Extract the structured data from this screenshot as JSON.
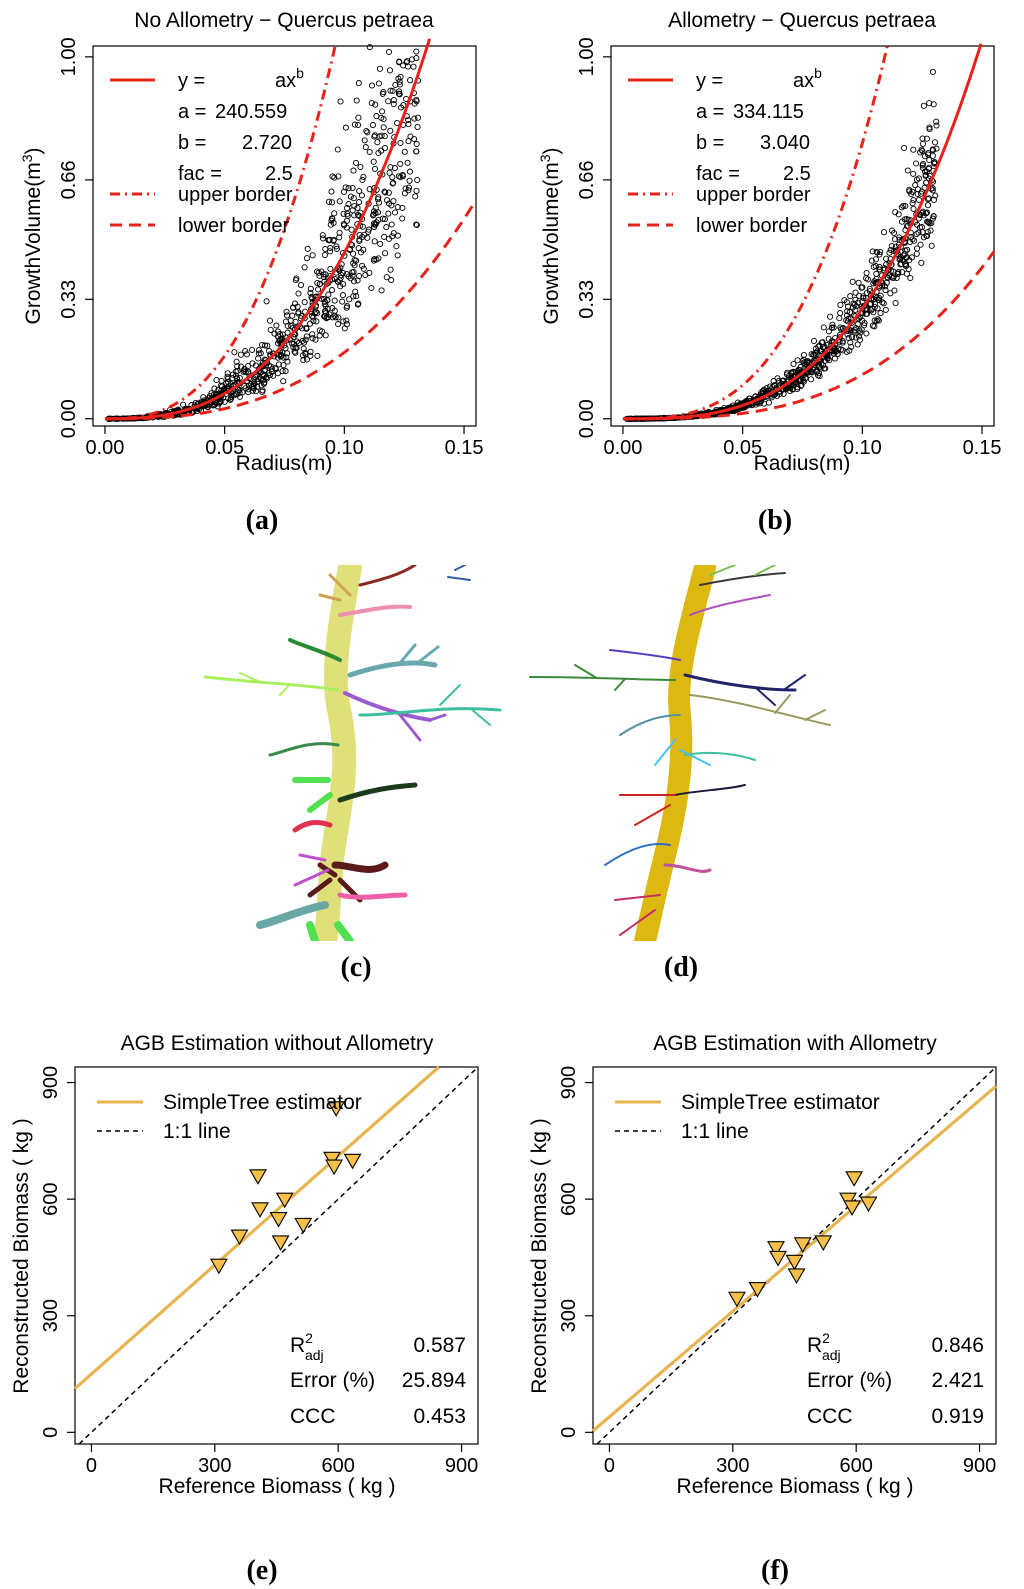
{
  "panels": {
    "a": {
      "caption": "(a)"
    },
    "b": {
      "caption": "(b)"
    },
    "c": {
      "caption": "(c)"
    },
    "d": {
      "caption": "(d)"
    },
    "e": {
      "caption": "(e)"
    },
    "f": {
      "caption": "(f)"
    }
  },
  "colors": {
    "fit_red": "#e8211a",
    "fit_orange": "#e8b450",
    "marker_fill": "#f4c04a",
    "trunk_c": "#dfe07a",
    "trunk_d": "#ddb810"
  },
  "chart_data": [
    {
      "id": "a",
      "type": "scatter",
      "title": "No Allometry − Quercus petraea",
      "xlabel": "Radius(m)",
      "ylabel": "GrowthVolume(m",
      "ylabel_sup": "3",
      "ylabel_close": ")",
      "xlim": [
        -0.005,
        0.155
      ],
      "ylim": [
        -0.02,
        1.03
      ],
      "xticks": [
        "0.00",
        "0.05",
        "0.10",
        "0.15"
      ],
      "xtick_values": [
        0,
        0.05,
        0.1,
        0.15
      ],
      "yticks": [
        "0.00",
        "0.33",
        "0.66",
        "1.00"
      ],
      "ytick_values": [
        0,
        0.33,
        0.66,
        1.0
      ],
      "model": {
        "a": 240.559,
        "b": 2.72,
        "fac": 2.5
      },
      "legend": {
        "fit_label": "y =",
        "fit_formula": "ax",
        "fit_sup": "b",
        "a_label": "a =",
        "a_value": "240.559",
        "b_label": "b =",
        "b_value": "2.720",
        "fac_label": "fac =",
        "fac_value": "2.5",
        "upper_label": "upper border",
        "lower_label": "lower border"
      },
      "points_note": "approx. 1000 points scattered around the fitted power curve"
    },
    {
      "id": "b",
      "type": "scatter",
      "title": "Allometry − Quercus petraea",
      "xlabel": "Radius(m)",
      "ylabel": "GrowthVolume(m",
      "ylabel_sup": "3",
      "ylabel_close": ")",
      "xlim": [
        -0.005,
        0.155
      ],
      "ylim": [
        -0.02,
        1.03
      ],
      "xticks": [
        "0.00",
        "0.05",
        "0.10",
        "0.15"
      ],
      "xtick_values": [
        0,
        0.05,
        0.1,
        0.15
      ],
      "yticks": [
        "0.00",
        "0.33",
        "0.66",
        "1.00"
      ],
      "ytick_values": [
        0,
        0.33,
        0.66,
        1.0
      ],
      "model": {
        "a": 334.115,
        "b": 3.04,
        "fac": 2.5
      },
      "legend": {
        "fit_label": "y =",
        "fit_formula": "ax",
        "fit_sup": "b",
        "a_label": "a =",
        "a_value": "334.115",
        "b_label": "b =",
        "b_value": "3.040",
        "fac_label": "fac =",
        "fac_value": "2.5",
        "upper_label": "upper border",
        "lower_label": "lower border"
      },
      "points_note": "approx. 1000 points tightly scattered around the fitted power curve"
    },
    {
      "id": "e",
      "type": "scatter",
      "title": "AGB Estimation without Allometry",
      "xlabel": "Reference Biomass ( kg )",
      "ylabel": "Reconstructed Biomass ( kg )",
      "xlim": [
        -40,
        940
      ],
      "ylim": [
        -30,
        940
      ],
      "xticks": [
        "0",
        "300",
        "600",
        "900"
      ],
      "xtick_values": [
        0,
        300,
        600,
        900
      ],
      "yticks": [
        "0",
        "300",
        "600",
        "900"
      ],
      "ytick_values": [
        0,
        300,
        600,
        900
      ],
      "fit": {
        "intercept": 150,
        "slope": 0.935
      },
      "legend": {
        "fit_label": "SimpleTree estimator",
        "ref_label": "1:1 line"
      },
      "stats": {
        "r2_label": "R",
        "r2_sup": "2",
        "r2_sub": "adj",
        "r2_value": "0.587",
        "error_label": "Error (%)",
        "error_value": "25.894",
        "ccc_label": "CCC",
        "ccc_value": "0.453"
      },
      "points": [
        [
          310,
          430
        ],
        [
          360,
          505
        ],
        [
          405,
          660
        ],
        [
          410,
          575
        ],
        [
          455,
          550
        ],
        [
          460,
          490
        ],
        [
          470,
          600
        ],
        [
          515,
          535
        ],
        [
          585,
          705
        ],
        [
          590,
          685
        ],
        [
          635,
          700
        ],
        [
          595,
          835
        ]
      ]
    },
    {
      "id": "f",
      "type": "scatter",
      "title": "AGB Estimation with Allometry",
      "xlabel": "Reference Biomass ( kg )",
      "ylabel": "Reconstructed Biomass ( kg )",
      "xlim": [
        -40,
        940
      ],
      "ylim": [
        -30,
        940
      ],
      "xticks": [
        "0",
        "300",
        "600",
        "900"
      ],
      "xtick_values": [
        0,
        300,
        600,
        900
      ],
      "yticks": [
        "0",
        "300",
        "600",
        "900"
      ],
      "ytick_values": [
        0,
        300,
        600,
        900
      ],
      "fit": {
        "intercept": 40,
        "slope": 0.905
      },
      "legend": {
        "fit_label": "SimpleTree estimator",
        "ref_label": "1:1 line"
      },
      "stats": {
        "r2_label": "R",
        "r2_sup": "2",
        "r2_sub": "adj",
        "r2_value": "0.846",
        "error_label": "Error (%)",
        "error_value": "2.421",
        "ccc_label": "CCC",
        "ccc_value": "0.919"
      },
      "points": [
        [
          310,
          345
        ],
        [
          360,
          370
        ],
        [
          405,
          475
        ],
        [
          410,
          450
        ],
        [
          450,
          440
        ],
        [
          455,
          405
        ],
        [
          470,
          485
        ],
        [
          520,
          490
        ],
        [
          580,
          600
        ],
        [
          590,
          580
        ],
        [
          595,
          655
        ],
        [
          630,
          590
        ]
      ]
    }
  ]
}
